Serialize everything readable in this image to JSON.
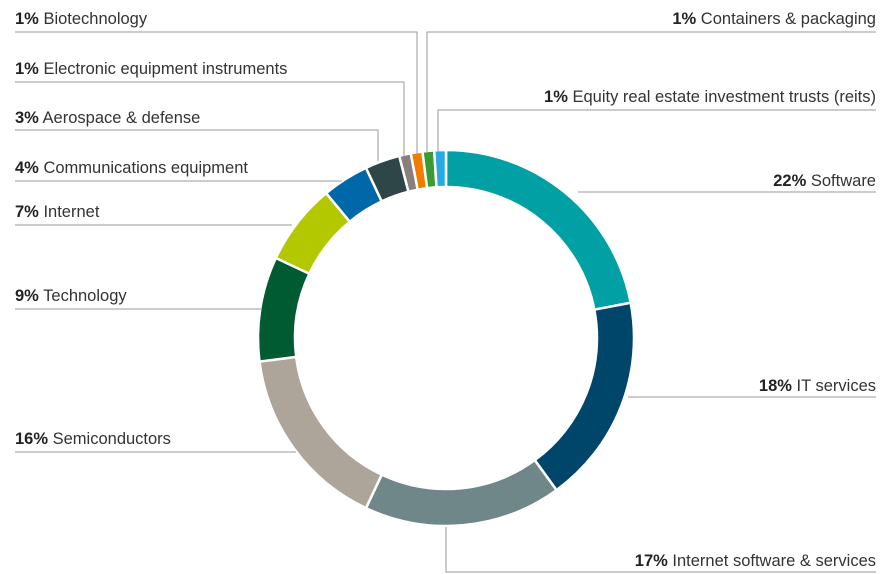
{
  "chart_data": {
    "type": "donut",
    "categories": [
      "Software",
      "IT services",
      "Internet software & services",
      "Semiconductors",
      "Technology",
      "Internet",
      "Communications equipment",
      "Aerospace & defense",
      "Electronic equipment instruments",
      "Biotechnology",
      "Containers & packaging",
      "Equity real estate investment trusts (reits)"
    ],
    "values": [
      22,
      18,
      17,
      16,
      9,
      7,
      4,
      3,
      1,
      1,
      1,
      1
    ],
    "value_labels": [
      "22%",
      "18%",
      "17%",
      "16%",
      "9%",
      "7%",
      "4%",
      "3%",
      "1%",
      "1%",
      "1%",
      "1%"
    ],
    "colors": [
      "#00a0a4",
      "#00466b",
      "#6f8789",
      "#ada59a",
      "#005a32",
      "#b3c800",
      "#0068a8",
      "#2e4647",
      "#8a7f7a",
      "#f07d00",
      "#3c9a35",
      "#27a9e1"
    ]
  }
}
